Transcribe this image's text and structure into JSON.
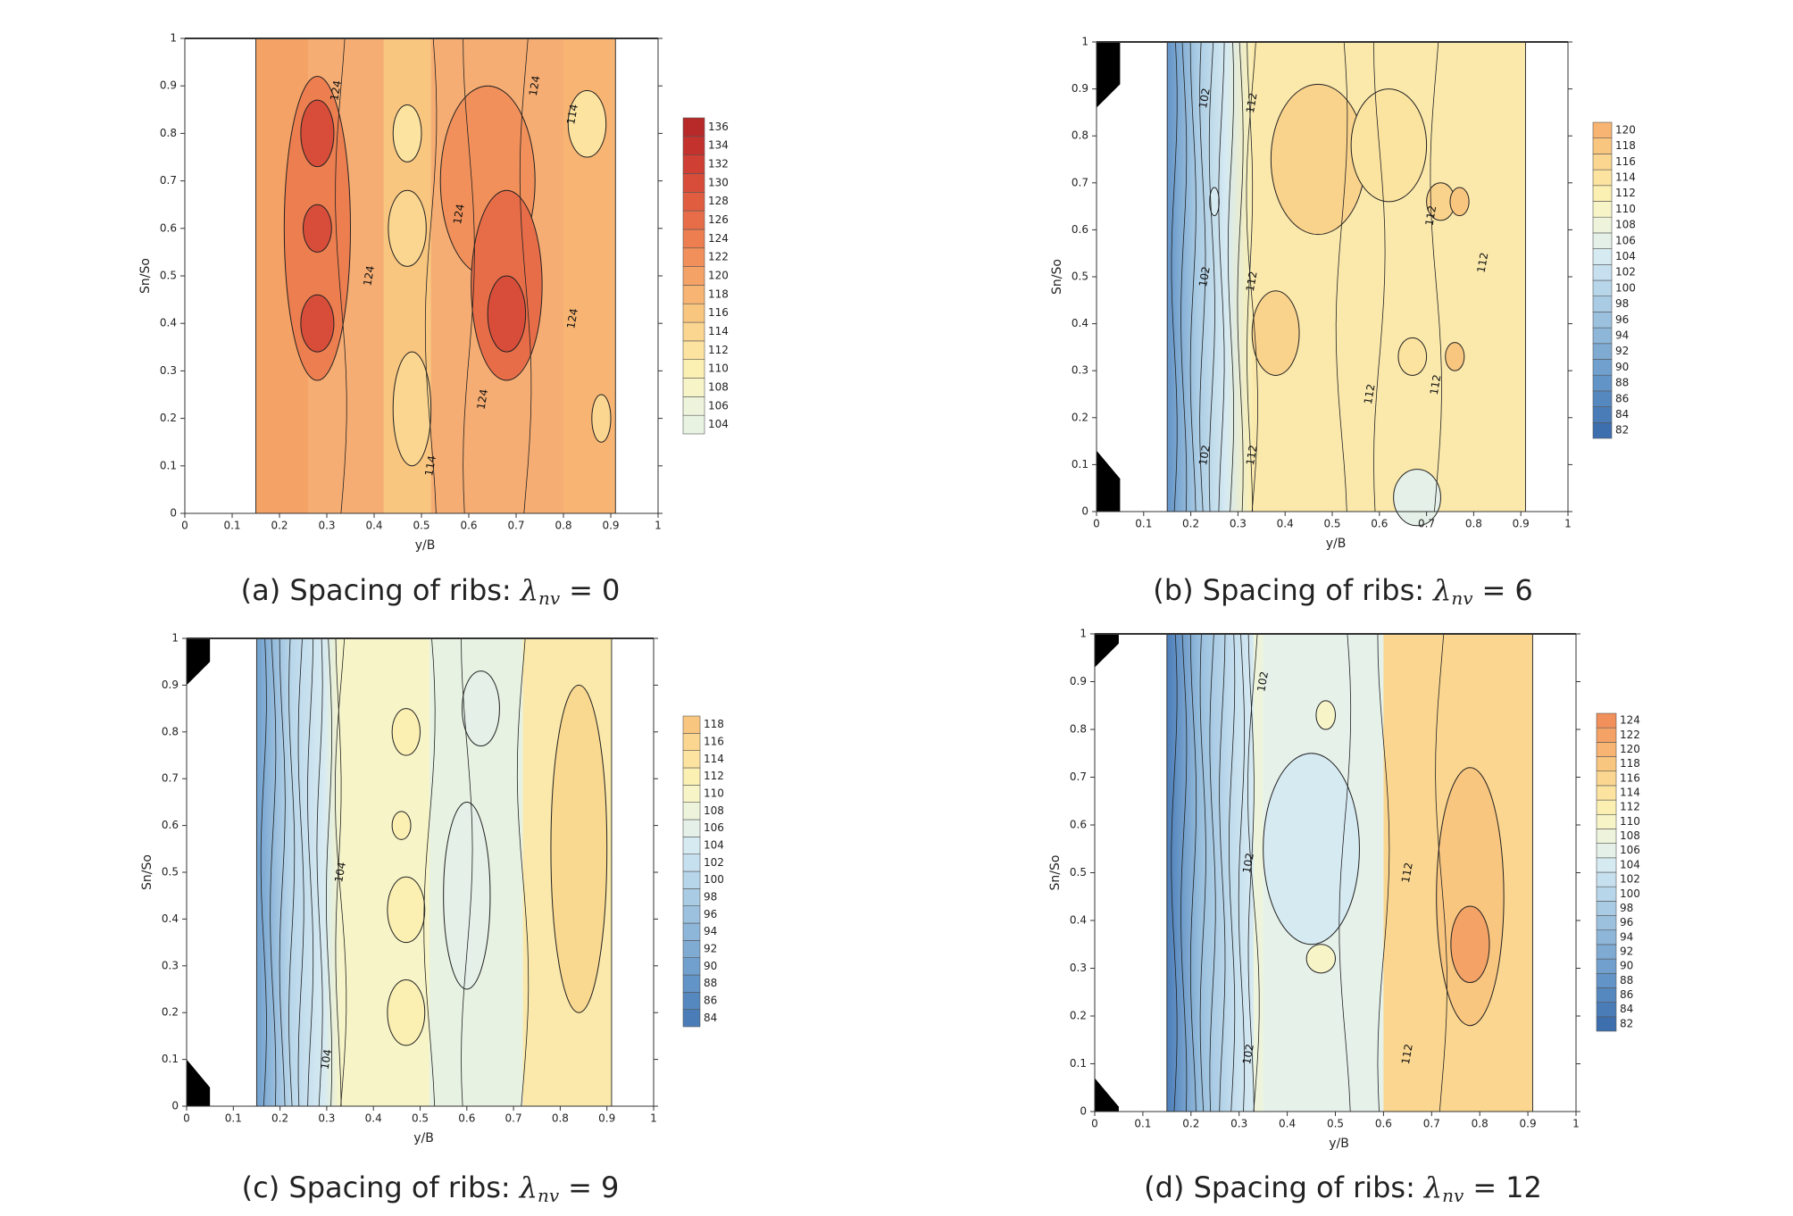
{
  "chart_data": [
    {
      "type": "contour",
      "caption": {
        "text": "(a) Spacing of ribs:",
        "symbol": "λ",
        "subscript": "nv",
        "relation": "=",
        "value": 0
      },
      "xlabel": "y/B",
      "ylabel": "Sn/So",
      "xlim": [
        0,
        1
      ],
      "ylim": [
        0,
        1
      ],
      "xticks": [
        0,
        0.1,
        0.2,
        0.3,
        0.4,
        0.5,
        0.6,
        0.7,
        0.8,
        0.9,
        1
      ],
      "yticks": [
        0,
        0.1,
        0.2,
        0.3,
        0.4,
        0.5,
        0.6,
        0.7,
        0.8,
        0.9,
        1
      ],
      "levels": [
        104,
        106,
        108,
        110,
        112,
        114,
        116,
        118,
        120,
        122,
        124,
        126,
        128,
        130,
        132,
        134,
        136
      ],
      "level_colors": [
        "#e8f3e2",
        "#eef4dc",
        "#f7f5c8",
        "#fbefb2",
        "#fce3a0",
        "#fbd690",
        "#f9c680",
        "#f7b472",
        "#f4a266",
        "#f1905a",
        "#ec7e50",
        "#e76d48",
        "#e05d40",
        "#d84d39",
        "#cf3f33",
        "#c4322e",
        "#b82a2a"
      ],
      "contour_labels": [
        124,
        124,
        124,
        124,
        124,
        114,
        124,
        114
      ]
    },
    {
      "type": "contour",
      "caption": {
        "text": "(b) Spacing of ribs:",
        "symbol": "λ",
        "subscript": "nv",
        "relation": "=",
        "value": 6
      },
      "xlabel": "y/B",
      "ylabel": "Sn/So",
      "xlim": [
        0,
        1
      ],
      "ylim": [
        0,
        1
      ],
      "xticks": [
        0,
        0.1,
        0.2,
        0.3,
        0.4,
        0.5,
        0.6,
        0.7,
        0.8,
        0.9,
        1
      ],
      "yticks": [
        0,
        0.1,
        0.2,
        0.3,
        0.4,
        0.5,
        0.6,
        0.7,
        0.8,
        0.9,
        1
      ],
      "levels": [
        82,
        84,
        86,
        88,
        90,
        92,
        94,
        96,
        98,
        100,
        102,
        104,
        106,
        108,
        110,
        112,
        114,
        116,
        118,
        120
      ],
      "level_colors": [
        "#3d6fae",
        "#4a7db8",
        "#5688c0",
        "#6394c7",
        "#71a0ce",
        "#7fabd3",
        "#8db6d9",
        "#9bc1df",
        "#a9cbe4",
        "#b8d6ea",
        "#c7e0ef",
        "#d6eaf2",
        "#e4f0e8",
        "#eef4dc",
        "#f7f5c8",
        "#fbefb2",
        "#fce3a0",
        "#fbd690",
        "#f9c680",
        "#f7b472"
      ],
      "contour_labels": [
        102,
        112,
        102,
        112,
        112,
        112,
        112,
        112,
        102,
        112
      ]
    },
    {
      "type": "contour",
      "caption": {
        "text": "(c) Spacing of ribs:",
        "symbol": "λ",
        "subscript": "nv",
        "relation": "=",
        "value": 9
      },
      "xlabel": "y/B",
      "ylabel": "Sn/So",
      "xlim": [
        0,
        1
      ],
      "ylim": [
        0,
        1
      ],
      "xticks": [
        0,
        0.1,
        0.2,
        0.3,
        0.4,
        0.5,
        0.6,
        0.7,
        0.8,
        0.9,
        1
      ],
      "yticks": [
        0,
        0.1,
        0.2,
        0.3,
        0.4,
        0.5,
        0.6,
        0.7,
        0.8,
        0.9,
        1
      ],
      "levels": [
        84,
        86,
        88,
        90,
        92,
        94,
        96,
        98,
        100,
        102,
        104,
        106,
        108,
        110,
        112,
        114,
        116,
        118
      ],
      "level_colors": [
        "#4a7db8",
        "#5688c0",
        "#6394c7",
        "#71a0ce",
        "#7fabd3",
        "#8db6d9",
        "#9bc1df",
        "#a9cbe4",
        "#b8d6ea",
        "#c7e0ef",
        "#d6eaf2",
        "#e4f0e8",
        "#eef4dc",
        "#f7f5c8",
        "#fbefb2",
        "#fce3a0",
        "#fbd690",
        "#f9c680"
      ],
      "contour_labels": [
        104,
        104
      ]
    },
    {
      "type": "contour",
      "caption": {
        "text": "(d) Spacing of ribs:",
        "symbol": "λ",
        "subscript": "nv",
        "relation": "=",
        "value": 12
      },
      "xlabel": "y/B",
      "ylabel": "Sn/So",
      "xlim": [
        0,
        1
      ],
      "ylim": [
        0,
        1
      ],
      "xticks": [
        0,
        0.1,
        0.2,
        0.3,
        0.4,
        0.5,
        0.6,
        0.7,
        0.8,
        0.9,
        1
      ],
      "yticks": [
        0,
        0.1,
        0.2,
        0.3,
        0.4,
        0.5,
        0.6,
        0.7,
        0.8,
        0.9,
        1
      ],
      "levels": [
        82,
        84,
        86,
        88,
        90,
        92,
        94,
        96,
        98,
        100,
        102,
        104,
        106,
        108,
        110,
        112,
        114,
        116,
        118,
        120,
        122,
        124
      ],
      "level_colors": [
        "#3d6fae",
        "#4a7db8",
        "#5688c0",
        "#6394c7",
        "#71a0ce",
        "#7fabd3",
        "#8db6d9",
        "#9bc1df",
        "#a9cbe4",
        "#b8d6ea",
        "#c7e0ef",
        "#d6eaf2",
        "#e4f0e8",
        "#eef4dc",
        "#f7f5c8",
        "#fbefb2",
        "#fce3a0",
        "#fbd690",
        "#f9c680",
        "#f7b472",
        "#f4a266",
        "#f1905a"
      ],
      "contour_labels": [
        102,
        102,
        102,
        112,
        112
      ]
    }
  ]
}
